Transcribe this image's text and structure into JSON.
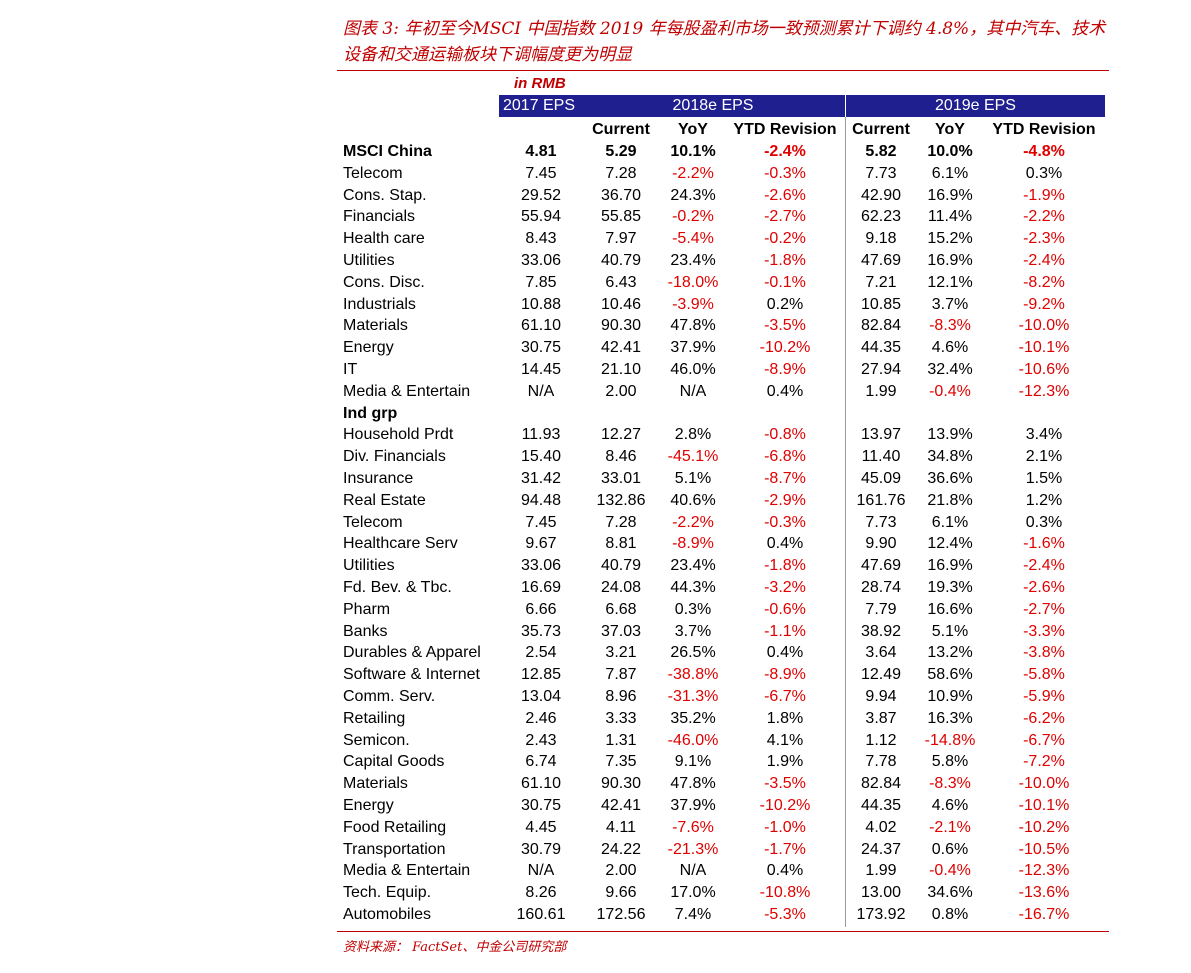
{
  "title": "图表 3: 年初至今MSCI 中国指数 2019 年每股盈利市场一致预测累计下调约 4.8%，其中汽车、技术设备和交通运输板块下调幅度更为明显",
  "unit": "in RMB",
  "header": {
    "eps2017": "2017 EPS",
    "eps2018e": "2018e EPS",
    "eps2019e": "2019e EPS"
  },
  "subheaders": [
    "Current",
    "YoY",
    "YTD Revision",
    "Current",
    "YoY",
    "YTD Revision"
  ],
  "rows": [
    {
      "name": "MSCI China",
      "bold": true,
      "v": [
        "4.81",
        "5.29",
        "10.1%",
        "-2.4%",
        "5.82",
        "10.0%",
        "-4.8%"
      ]
    },
    {
      "name": "Telecom",
      "v": [
        "7.45",
        "7.28",
        "-2.2%",
        "-0.3%",
        "7.73",
        "6.1%",
        "0.3%"
      ]
    },
    {
      "name": "Cons. Stap.",
      "v": [
        "29.52",
        "36.70",
        "24.3%",
        "-2.6%",
        "42.90",
        "16.9%",
        "-1.9%"
      ]
    },
    {
      "name": "Financials",
      "v": [
        "55.94",
        "55.85",
        "-0.2%",
        "-2.7%",
        "62.23",
        "11.4%",
        "-2.2%"
      ]
    },
    {
      "name": "Health care",
      "v": [
        "8.43",
        "7.97",
        "-5.4%",
        "-0.2%",
        "9.18",
        "15.2%",
        "-2.3%"
      ]
    },
    {
      "name": "Utilities",
      "v": [
        "33.06",
        "40.79",
        "23.4%",
        "-1.8%",
        "47.69",
        "16.9%",
        "-2.4%"
      ]
    },
    {
      "name": "Cons. Disc.",
      "v": [
        "7.85",
        "6.43",
        "-18.0%",
        "-0.1%",
        "7.21",
        "12.1%",
        "-8.2%"
      ]
    },
    {
      "name": "Industrials",
      "v": [
        "10.88",
        "10.46",
        "-3.9%",
        "0.2%",
        "10.85",
        "3.7%",
        "-9.2%"
      ]
    },
    {
      "name": "Materials",
      "v": [
        "61.10",
        "90.30",
        "47.8%",
        "-3.5%",
        "82.84",
        "-8.3%",
        "-10.0%"
      ]
    },
    {
      "name": "Energy",
      "v": [
        "30.75",
        "42.41",
        "37.9%",
        "-10.2%",
        "44.35",
        "4.6%",
        "-10.1%"
      ]
    },
    {
      "name": "IT",
      "v": [
        "14.45",
        "21.10",
        "46.0%",
        "-8.9%",
        "27.94",
        "32.4%",
        "-10.6%"
      ]
    },
    {
      "name": "Media & Entertain",
      "v": [
        "N/A",
        "2.00",
        "N/A",
        "0.4%",
        "1.99",
        "-0.4%",
        "-12.3%"
      ]
    },
    {
      "name": "Ind grp",
      "bold": true,
      "v": [
        "",
        "",
        "",
        "",
        "",
        "",
        ""
      ]
    },
    {
      "name": "Household Prdt",
      "v": [
        "11.93",
        "12.27",
        "2.8%",
        "-0.8%",
        "13.97",
        "13.9%",
        "3.4%"
      ]
    },
    {
      "name": "Div. Financials",
      "v": [
        "15.40",
        "8.46",
        "-45.1%",
        "-6.8%",
        "11.40",
        "34.8%",
        "2.1%"
      ]
    },
    {
      "name": "Insurance",
      "v": [
        "31.42",
        "33.01",
        "5.1%",
        "-8.7%",
        "45.09",
        "36.6%",
        "1.5%"
      ]
    },
    {
      "name": "Real Estate",
      "v": [
        "94.48",
        "132.86",
        "40.6%",
        "-2.9%",
        "161.76",
        "21.8%",
        "1.2%"
      ]
    },
    {
      "name": "Telecom",
      "v": [
        "7.45",
        "7.28",
        "-2.2%",
        "-0.3%",
        "7.73",
        "6.1%",
        "0.3%"
      ]
    },
    {
      "name": "Healthcare Serv",
      "v": [
        "9.67",
        "8.81",
        "-8.9%",
        "0.4%",
        "9.90",
        "12.4%",
        "-1.6%"
      ]
    },
    {
      "name": "Utilities",
      "v": [
        "33.06",
        "40.79",
        "23.4%",
        "-1.8%",
        "47.69",
        "16.9%",
        "-2.4%"
      ]
    },
    {
      "name": "Fd. Bev. & Tbc.",
      "v": [
        "16.69",
        "24.08",
        "44.3%",
        "-3.2%",
        "28.74",
        "19.3%",
        "-2.6%"
      ]
    },
    {
      "name": "Pharm",
      "v": [
        "6.66",
        "6.68",
        "0.3%",
        "-0.6%",
        "7.79",
        "16.6%",
        "-2.7%"
      ]
    },
    {
      "name": "Banks",
      "v": [
        "35.73",
        "37.03",
        "3.7%",
        "-1.1%",
        "38.92",
        "5.1%",
        "-3.3%"
      ]
    },
    {
      "name": "Durables & Apparel",
      "v": [
        "2.54",
        "3.21",
        "26.5%",
        "0.4%",
        "3.64",
        "13.2%",
        "-3.8%"
      ]
    },
    {
      "name": "Software & Internet",
      "v": [
        "12.85",
        "7.87",
        "-38.8%",
        "-8.9%",
        "12.49",
        "58.6%",
        "-5.8%"
      ]
    },
    {
      "name": "Comm. Serv.",
      "v": [
        "13.04",
        "8.96",
        "-31.3%",
        "-6.7%",
        "9.94",
        "10.9%",
        "-5.9%"
      ]
    },
    {
      "name": "Retailing",
      "v": [
        "2.46",
        "3.33",
        "35.2%",
        "1.8%",
        "3.87",
        "16.3%",
        "-6.2%"
      ]
    },
    {
      "name": "Semicon.",
      "v": [
        "2.43",
        "1.31",
        "-46.0%",
        "4.1%",
        "1.12",
        "-14.8%",
        "-6.7%"
      ]
    },
    {
      "name": "Capital Goods",
      "v": [
        "6.74",
        "7.35",
        "9.1%",
        "1.9%",
        "7.78",
        "5.8%",
        "-7.2%"
      ]
    },
    {
      "name": "Materials",
      "v": [
        "61.10",
        "90.30",
        "47.8%",
        "-3.5%",
        "82.84",
        "-8.3%",
        "-10.0%"
      ]
    },
    {
      "name": "Energy",
      "v": [
        "30.75",
        "42.41",
        "37.9%",
        "-10.2%",
        "44.35",
        "4.6%",
        "-10.1%"
      ]
    },
    {
      "name": "Food Retailing",
      "v": [
        "4.45",
        "4.11",
        "-7.6%",
        "-1.0%",
        "4.02",
        "-2.1%",
        "-10.2%"
      ]
    },
    {
      "name": "Transportation",
      "v": [
        "30.79",
        "24.22",
        "-21.3%",
        "-1.7%",
        "24.37",
        "0.6%",
        "-10.5%"
      ]
    },
    {
      "name": "Media & Entertain",
      "v": [
        "N/A",
        "2.00",
        "N/A",
        "0.4%",
        "1.99",
        "-0.4%",
        "-12.3%"
      ]
    },
    {
      "name": "Tech. Equip.",
      "v": [
        "8.26",
        "9.66",
        "17.0%",
        "-10.8%",
        "13.00",
        "34.6%",
        "-13.6%"
      ]
    },
    {
      "name": "Automobiles",
      "v": [
        "160.61",
        "172.56",
        "7.4%",
        "-5.3%",
        "173.92",
        "0.8%",
        "-16.7%"
      ]
    }
  ],
  "source": "资料来源： FactSet、中金公司研究部",
  "colors": {
    "accent": "#c00000",
    "header_band": "#1f1f8f",
    "negative": "#e00000"
  }
}
